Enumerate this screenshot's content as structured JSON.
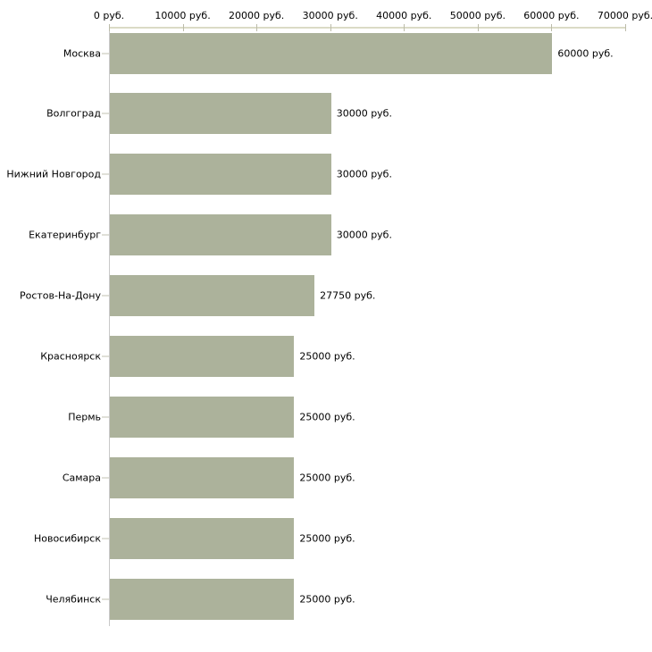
{
  "chart_data": {
    "type": "bar",
    "orientation": "horizontal",
    "title": "",
    "xlabel": "",
    "ylabel": "",
    "xlim": [
      0,
      70000
    ],
    "grid": false,
    "legend": false,
    "categories": [
      "Москва",
      "Волгоград",
      "Нижний Новгород",
      "Екатеринбург",
      "Ростов-На-Дону",
      "Красноярск",
      "Пермь",
      "Самара",
      "Новосибирск",
      "Челябинск"
    ],
    "values": [
      60000,
      30000,
      30000,
      30000,
      27750,
      25000,
      25000,
      25000,
      25000,
      25000
    ],
    "value_labels": [
      "60000 руб.",
      "30000 руб.",
      "30000 руб.",
      "30000 руб.",
      "27750 руб.",
      "25000 руб.",
      "25000 руб.",
      "25000 руб.",
      "25000 руб.",
      "25000 руб."
    ],
    "x_ticks": [
      {
        "value": 0,
        "label": "0 руб."
      },
      {
        "value": 10000,
        "label": "10000 руб."
      },
      {
        "value": 20000,
        "label": "20000 руб."
      },
      {
        "value": 30000,
        "label": "30000 руб."
      },
      {
        "value": 40000,
        "label": "40000 руб."
      },
      {
        "value": 50000,
        "label": "50000 руб."
      },
      {
        "value": 60000,
        "label": "60000 руб."
      },
      {
        "value": 70000,
        "label": "70000 руб."
      }
    ],
    "colors": {
      "bar_fill": "#acb29b",
      "x_axis_line": "#dbdbc6",
      "x_tick_mark": "#bcbcaa",
      "y_axis_line": "#c9c9c9",
      "category_tick": "#c2c2b2",
      "text": "#000000",
      "background": "#ffffff"
    }
  }
}
